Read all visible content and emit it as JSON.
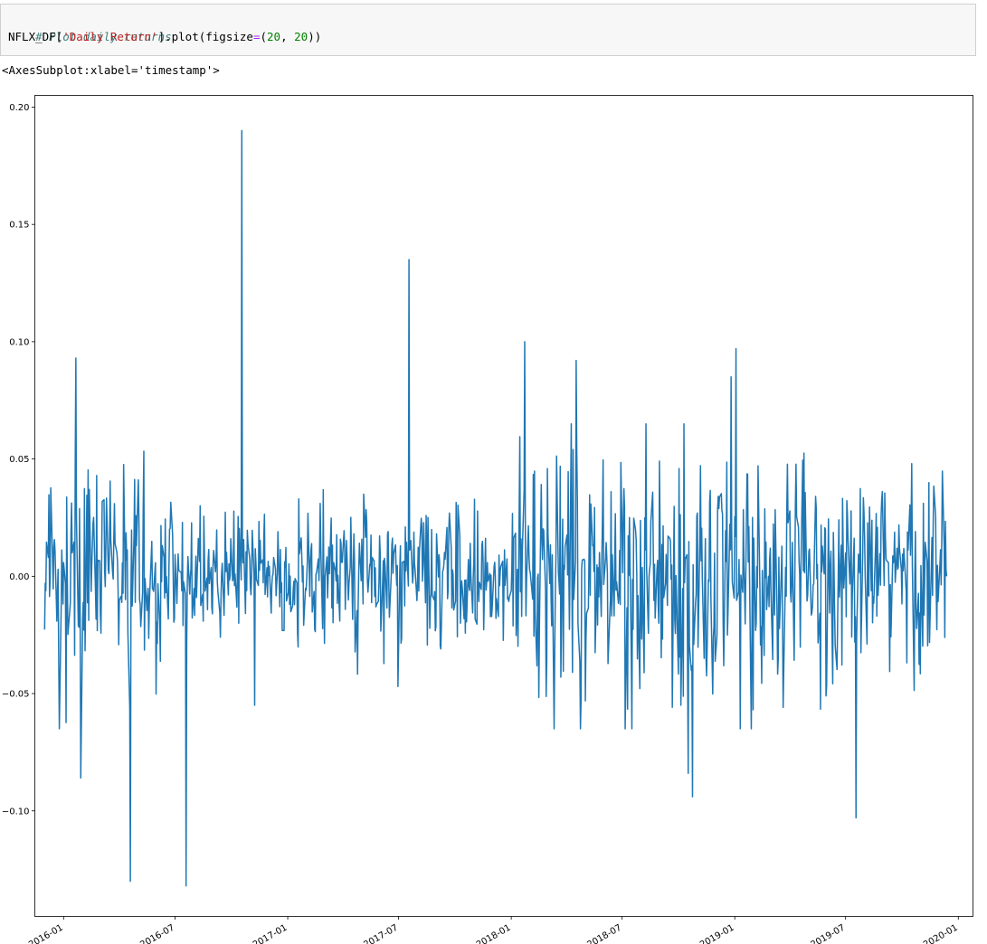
{
  "cell": {
    "comment": "# Plot daily returns",
    "code_prefix": "NFLX_DF[",
    "code_string": "'Daily Return'",
    "code_mid": "].plot(figsize",
    "code_eq": "=",
    "code_paren_open": "(",
    "code_num1": "20",
    "code_comma": ", ",
    "code_num2": "20",
    "code_end": "))"
  },
  "output": {
    "repr": "<AxesSubplot:xlabel='timestamp'>"
  },
  "colors": {
    "line": "#1f77b4",
    "cell_bg": "#f7f7f7"
  },
  "chart_data": {
    "type": "line",
    "xlabel": "",
    "ylabel": "",
    "ylim": [
      -0.145,
      0.205
    ],
    "xlim": [
      "2015-11-15",
      "2020-01-25"
    ],
    "x_start": "2015-12-01",
    "x_end": "2019-12-13",
    "y_ticks": [
      {
        "value": 0.2,
        "label": "0.20"
      },
      {
        "value": 0.15,
        "label": "0.15"
      },
      {
        "value": 0.1,
        "label": "0.10"
      },
      {
        "value": 0.05,
        "label": "0.05"
      },
      {
        "value": 0.0,
        "label": "0.00"
      },
      {
        "value": -0.05,
        "label": "−0.05"
      },
      {
        "value": -0.1,
        "label": "−0.10"
      }
    ],
    "x_ticks": [
      {
        "value": "2016-01-01",
        "label": "2016-01"
      },
      {
        "value": "2016-07-01",
        "label": "2016-07"
      },
      {
        "value": "2017-01-01",
        "label": "2017-01"
      },
      {
        "value": "2017-07-01",
        "label": "2017-07"
      },
      {
        "value": "2018-01-01",
        "label": "2018-01"
      },
      {
        "value": "2018-07-01",
        "label": "2018-07"
      },
      {
        "value": "2019-01-01",
        "label": "2019-01"
      },
      {
        "value": "2019-07-01",
        "label": "2019-07"
      },
      {
        "value": "2020-01-01",
        "label": "2020-01"
      }
    ],
    "series": [
      {
        "notable_points": [
          {
            "x": "2016-01-21",
            "y": 0.093
          },
          {
            "x": "2016-01-29",
            "y": -0.086
          },
          {
            "x": "2016-04-19",
            "y": -0.13
          },
          {
            "x": "2016-07-19",
            "y": -0.132
          },
          {
            "x": "2016-10-18",
            "y": 0.19
          },
          {
            "x": "2016-11-08",
            "y": -0.055
          },
          {
            "x": "2017-01-19",
            "y": 0.033
          },
          {
            "x": "2017-07-18",
            "y": 0.135
          },
          {
            "x": "2017-06-30",
            "y": -0.047
          },
          {
            "x": "2018-01-23",
            "y": 0.1
          },
          {
            "x": "2018-04-17",
            "y": 0.092
          },
          {
            "x": "2018-07-17",
            "y": -0.065
          },
          {
            "x": "2018-10-17",
            "y": -0.084
          },
          {
            "x": "2018-10-24",
            "y": -0.094
          },
          {
            "x": "2018-12-26",
            "y": 0.085
          },
          {
            "x": "2019-01-03",
            "y": 0.097
          },
          {
            "x": "2019-07-18",
            "y": -0.103
          },
          {
            "x": "2019-10-17",
            "y": 0.048
          },
          {
            "x": "2019-12-13",
            "y": 0.0
          }
        ]
      }
    ]
  }
}
